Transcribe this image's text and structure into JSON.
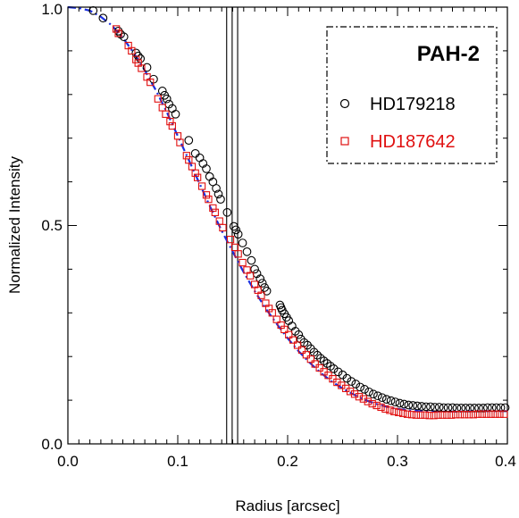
{
  "chart_data": {
    "type": "scatter",
    "title": "",
    "xlabel": "Radius [arcsec]",
    "ylabel": "Normalized Intensity",
    "xlim": [
      0.0,
      0.4
    ],
    "ylim": [
      0.0,
      1.0
    ],
    "x_ticks": [
      "0.0",
      "0.1",
      "0.2",
      "0.3",
      "0.4"
    ],
    "y_ticks": [
      "0.0",
      "0.5",
      "1.0"
    ],
    "grid": false,
    "legend": {
      "placement": "top-right",
      "title": "PAH-2",
      "entries": [
        "HD179218",
        "HD187642"
      ]
    },
    "vertical_lines": [
      0.1445,
      0.1495,
      0.1545
    ],
    "series": [
      {
        "name": "HD179218",
        "marker": "circle",
        "color": "#000000",
        "points": [
          [
            0.023,
            0.992
          ],
          [
            0.032,
            0.975
          ],
          [
            0.046,
            0.945
          ],
          [
            0.048,
            0.938
          ],
          [
            0.051,
            0.932
          ],
          [
            0.062,
            0.895
          ],
          [
            0.064,
            0.888
          ],
          [
            0.066,
            0.882
          ],
          [
            0.072,
            0.862
          ],
          [
            0.078,
            0.835
          ],
          [
            0.086,
            0.808
          ],
          [
            0.088,
            0.798
          ],
          [
            0.09,
            0.79
          ],
          [
            0.092,
            0.778
          ],
          [
            0.095,
            0.768
          ],
          [
            0.098,
            0.755
          ],
          [
            0.11,
            0.695
          ],
          [
            0.116,
            0.665
          ],
          [
            0.12,
            0.655
          ],
          [
            0.123,
            0.642
          ],
          [
            0.126,
            0.63
          ],
          [
            0.129,
            0.612
          ],
          [
            0.132,
            0.6
          ],
          [
            0.135,
            0.585
          ],
          [
            0.137,
            0.572
          ],
          [
            0.139,
            0.56
          ],
          [
            0.145,
            0.53
          ],
          [
            0.151,
            0.498
          ],
          [
            0.153,
            0.49
          ],
          [
            0.155,
            0.48
          ],
          [
            0.159,
            0.46
          ],
          [
            0.163,
            0.44
          ],
          [
            0.167,
            0.42
          ],
          [
            0.17,
            0.4
          ],
          [
            0.172,
            0.39
          ],
          [
            0.175,
            0.378
          ],
          [
            0.177,
            0.368
          ],
          [
            0.179,
            0.358
          ],
          [
            0.181,
            0.35
          ],
          [
            0.193,
            0.318
          ],
          [
            0.194,
            0.312
          ],
          [
            0.195,
            0.306
          ],
          [
            0.197,
            0.298
          ],
          [
            0.199,
            0.29
          ],
          [
            0.201,
            0.282
          ],
          [
            0.204,
            0.27
          ],
          [
            0.207,
            0.258
          ],
          [
            0.21,
            0.25
          ],
          [
            0.212,
            0.24
          ],
          [
            0.215,
            0.232
          ],
          [
            0.218,
            0.226
          ],
          [
            0.221,
            0.218
          ],
          [
            0.224,
            0.21
          ],
          [
            0.227,
            0.203
          ],
          [
            0.23,
            0.196
          ],
          [
            0.233,
            0.19
          ],
          [
            0.236,
            0.184
          ],
          [
            0.239,
            0.178
          ],
          [
            0.242,
            0.172
          ],
          [
            0.246,
            0.165
          ],
          [
            0.25,
            0.158
          ],
          [
            0.254,
            0.15
          ],
          [
            0.258,
            0.143
          ],
          [
            0.262,
            0.137
          ],
          [
            0.266,
            0.13
          ],
          [
            0.27,
            0.125
          ],
          [
            0.274,
            0.119
          ],
          [
            0.278,
            0.114
          ],
          [
            0.282,
            0.11
          ],
          [
            0.286,
            0.106
          ],
          [
            0.29,
            0.102
          ],
          [
            0.294,
            0.099
          ],
          [
            0.298,
            0.096
          ],
          [
            0.302,
            0.093
          ],
          [
            0.306,
            0.091
          ],
          [
            0.31,
            0.089
          ],
          [
            0.314,
            0.088
          ],
          [
            0.318,
            0.087
          ],
          [
            0.322,
            0.086
          ],
          [
            0.326,
            0.085
          ],
          [
            0.33,
            0.085
          ],
          [
            0.334,
            0.084
          ],
          [
            0.338,
            0.084
          ],
          [
            0.342,
            0.083
          ],
          [
            0.346,
            0.083
          ],
          [
            0.35,
            0.083
          ],
          [
            0.354,
            0.082
          ],
          [
            0.358,
            0.082
          ],
          [
            0.362,
            0.082
          ],
          [
            0.366,
            0.082
          ],
          [
            0.37,
            0.082
          ],
          [
            0.374,
            0.082
          ],
          [
            0.378,
            0.082
          ],
          [
            0.382,
            0.083
          ],
          [
            0.386,
            0.083
          ],
          [
            0.39,
            0.083
          ],
          [
            0.394,
            0.083
          ],
          [
            0.398,
            0.083
          ]
        ]
      },
      {
        "name": "HD187642",
        "marker": "square",
        "color": "#e01010",
        "points": [
          [
            0.044,
            0.95
          ],
          [
            0.046,
            0.94
          ],
          [
            0.055,
            0.912
          ],
          [
            0.058,
            0.9
          ],
          [
            0.062,
            0.88
          ],
          [
            0.064,
            0.872
          ],
          [
            0.067,
            0.86
          ],
          [
            0.072,
            0.84
          ],
          [
            0.075,
            0.828
          ],
          [
            0.082,
            0.79
          ],
          [
            0.086,
            0.77
          ],
          [
            0.089,
            0.755
          ],
          [
            0.093,
            0.738
          ],
          [
            0.095,
            0.728
          ],
          [
            0.1,
            0.705
          ],
          [
            0.102,
            0.69
          ],
          [
            0.108,
            0.66
          ],
          [
            0.11,
            0.65
          ],
          [
            0.113,
            0.635
          ],
          [
            0.116,
            0.62
          ],
          [
            0.118,
            0.61
          ],
          [
            0.122,
            0.59
          ],
          [
            0.126,
            0.57
          ],
          [
            0.128,
            0.56
          ],
          [
            0.132,
            0.54
          ],
          [
            0.134,
            0.53
          ],
          [
            0.138,
            0.51
          ],
          [
            0.141,
            0.495
          ],
          [
            0.148,
            0.468
          ],
          [
            0.152,
            0.45
          ],
          [
            0.155,
            0.435
          ],
          [
            0.159,
            0.415
          ],
          [
            0.163,
            0.398
          ],
          [
            0.166,
            0.385
          ],
          [
            0.17,
            0.365
          ],
          [
            0.173,
            0.352
          ],
          [
            0.176,
            0.34
          ],
          [
            0.18,
            0.322
          ],
          [
            0.183,
            0.31
          ],
          [
            0.186,
            0.3
          ],
          [
            0.19,
            0.285
          ],
          [
            0.194,
            0.272
          ],
          [
            0.197,
            0.262
          ],
          [
            0.201,
            0.25
          ],
          [
            0.205,
            0.238
          ],
          [
            0.209,
            0.226
          ],
          [
            0.213,
            0.215
          ],
          [
            0.217,
            0.204
          ],
          [
            0.221,
            0.194
          ],
          [
            0.225,
            0.183
          ],
          [
            0.229,
            0.174
          ],
          [
            0.233,
            0.165
          ],
          [
            0.237,
            0.157
          ],
          [
            0.241,
            0.149
          ],
          [
            0.245,
            0.141
          ],
          [
            0.249,
            0.134
          ],
          [
            0.253,
            0.127
          ],
          [
            0.257,
            0.12
          ],
          [
            0.261,
            0.114
          ],
          [
            0.265,
            0.108
          ],
          [
            0.269,
            0.103
          ],
          [
            0.273,
            0.097
          ],
          [
            0.277,
            0.092
          ],
          [
            0.281,
            0.088
          ],
          [
            0.285,
            0.084
          ],
          [
            0.289,
            0.08
          ],
          [
            0.293,
            0.077
          ],
          [
            0.297,
            0.074
          ],
          [
            0.301,
            0.072
          ],
          [
            0.305,
            0.07
          ],
          [
            0.309,
            0.068
          ],
          [
            0.313,
            0.067
          ],
          [
            0.317,
            0.066
          ],
          [
            0.321,
            0.066
          ],
          [
            0.325,
            0.066
          ],
          [
            0.329,
            0.065
          ],
          [
            0.333,
            0.065
          ],
          [
            0.337,
            0.066
          ],
          [
            0.341,
            0.066
          ],
          [
            0.345,
            0.066
          ],
          [
            0.349,
            0.066
          ],
          [
            0.353,
            0.067
          ],
          [
            0.357,
            0.067
          ],
          [
            0.361,
            0.067
          ],
          [
            0.365,
            0.067
          ],
          [
            0.369,
            0.067
          ],
          [
            0.373,
            0.068
          ],
          [
            0.377,
            0.068
          ],
          [
            0.381,
            0.068
          ],
          [
            0.385,
            0.068
          ],
          [
            0.389,
            0.068
          ],
          [
            0.393,
            0.068
          ],
          [
            0.397,
            0.068
          ]
        ]
      },
      {
        "name": "",
        "style": "dashed-line",
        "color": "#1a2fe0",
        "points": [
          [
            0.0,
            1.0
          ],
          [
            0.01,
            0.998
          ],
          [
            0.02,
            0.992
          ],
          [
            0.03,
            0.978
          ],
          [
            0.04,
            0.958
          ],
          [
            0.05,
            0.93
          ],
          [
            0.06,
            0.895
          ],
          [
            0.07,
            0.855
          ],
          [
            0.08,
            0.81
          ],
          [
            0.09,
            0.76
          ],
          [
            0.1,
            0.705
          ],
          [
            0.11,
            0.65
          ],
          [
            0.12,
            0.595
          ],
          [
            0.13,
            0.54
          ],
          [
            0.14,
            0.488
          ],
          [
            0.15,
            0.44
          ],
          [
            0.16,
            0.393
          ],
          [
            0.17,
            0.35
          ],
          [
            0.18,
            0.31
          ],
          [
            0.19,
            0.275
          ],
          [
            0.2,
            0.242
          ],
          [
            0.21,
            0.212
          ],
          [
            0.22,
            0.186
          ],
          [
            0.23,
            0.163
          ],
          [
            0.24,
            0.143
          ],
          [
            0.25,
            0.127
          ],
          [
            0.26,
            0.113
          ],
          [
            0.27,
            0.101
          ],
          [
            0.28,
            0.092
          ],
          [
            0.29,
            0.085
          ],
          [
            0.3,
            0.08
          ],
          [
            0.31,
            0.077
          ],
          [
            0.32,
            0.075
          ],
          [
            0.33,
            0.074
          ],
          [
            0.34,
            0.074
          ],
          [
            0.35,
            0.074
          ],
          [
            0.36,
            0.074
          ],
          [
            0.37,
            0.075
          ],
          [
            0.38,
            0.075
          ],
          [
            0.39,
            0.075
          ],
          [
            0.4,
            0.075
          ]
        ]
      }
    ]
  }
}
